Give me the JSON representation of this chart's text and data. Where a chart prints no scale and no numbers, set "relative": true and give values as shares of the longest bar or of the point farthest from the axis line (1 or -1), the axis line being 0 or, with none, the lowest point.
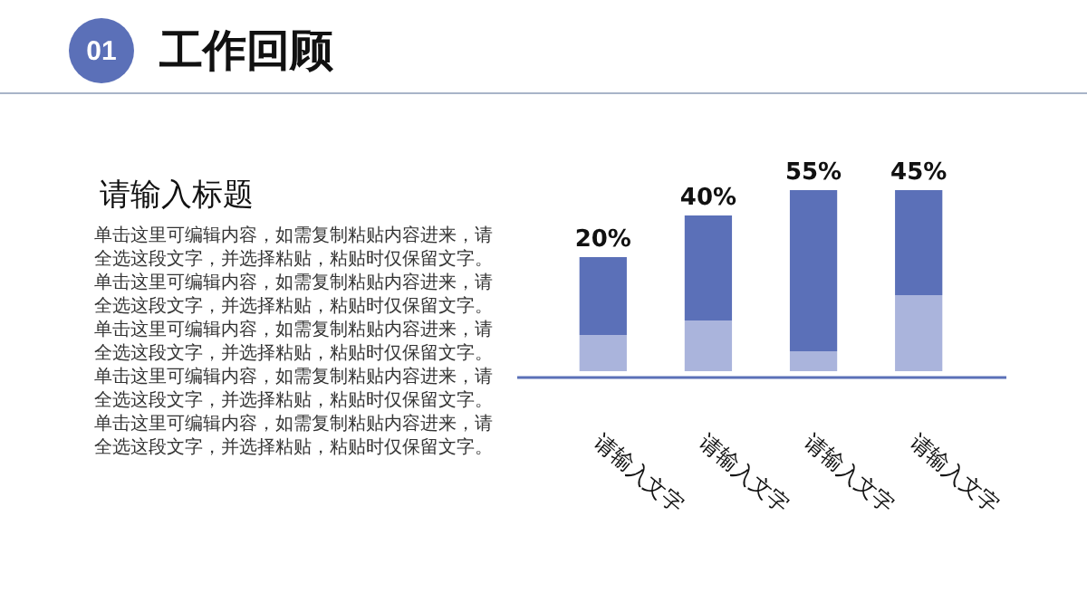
{
  "chart_data": {
    "type": "bar",
    "title": "工作回顾",
    "subtitle": "请输入标题",
    "annotations": [
      "01",
      "单击这里可编辑内容，如需复制粘贴内容进来，请全选这段文字，并选择粘贴，粘贴时仅保留文字。",
      "单击这里可编辑内容，如需复制粘贴内容进来，请全选这段文字，并选择粘贴，粘贴时仅保留文字。",
      "单击这里可编辑内容，如需复制粘贴内容进来，请全选这段文字，并选择粘贴，粘贴时仅保留文字。",
      "单击这里可编辑内容，如需复制粘贴内容进来，请全选这段文字，并选择粘贴，粘贴时仅保留文字。",
      "单击这里可编辑内容，如需复制粘贴内容进来，请全选这段文字，并选择粘贴，粘贴时仅保留文字。",
      "20%",
      "40%",
      "55%",
      "45%"
    ],
    "categories": [
      "请输入文字",
      "请输入文字",
      "请输入文字",
      "请输入文字"
    ],
    "stacked": true,
    "relative": true,
    "series": [
      {
        "color": "#aab4dc",
        "values": [
          0.2,
          0.28,
          0.11,
          0.42
        ]
      },
      {
        "color": "#5b70b8",
        "values": [
          0.43,
          0.58,
          0.89,
          0.58
        ]
      }
    ]
  }
}
